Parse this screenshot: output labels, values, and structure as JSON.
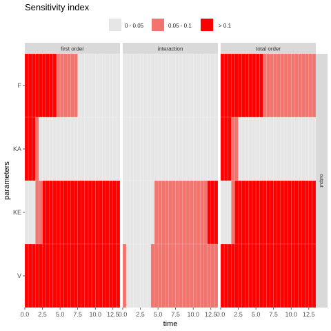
{
  "chart_data": {
    "type": "heatmap",
    "title": "Sensitivity index",
    "xlabel": "time",
    "ylabel": "parameters",
    "strip_right": "output",
    "panels": [
      "first order",
      "interaction",
      "total order"
    ],
    "parameters_top_to_bottom": [
      "F",
      "KA",
      "KE",
      "V"
    ],
    "x_range": [
      0,
      13.5
    ],
    "x_ticks": [
      0.0,
      2.5,
      5.0,
      7.5,
      10.0,
      12.5
    ],
    "x_tick_labels": [
      "0.0",
      "2.5",
      "5.0",
      "7.5",
      "10.0",
      "12.5"
    ],
    "time_bins": [
      0.5,
      1.0,
      1.5,
      2.0,
      2.5,
      3.0,
      3.5,
      4.0,
      4.5,
      5.0,
      5.5,
      6.0,
      6.5,
      7.0,
      7.5,
      8.0,
      8.5,
      9.0,
      9.5,
      10.0,
      10.5,
      11.0,
      11.5,
      12.0,
      12.5,
      13.0,
      13.5
    ],
    "legend": [
      {
        "label": "0 - 0.05",
        "color": "#E6E6E6"
      },
      {
        "label": "0.05 - 0.1",
        "color": "#F1756E"
      },
      {
        "label": "> 0.1",
        "color": "#FF0000"
      }
    ],
    "category_by_panel": {
      "first order": {
        "F": [
          2,
          2,
          2,
          2,
          2,
          2,
          2,
          2,
          2,
          1,
          1,
          1,
          1,
          1,
          1,
          0,
          0,
          0,
          0,
          0,
          0,
          0,
          0,
          0,
          0,
          0,
          0
        ],
        "KA": [
          2,
          2,
          2,
          1,
          0,
          0,
          0,
          0,
          0,
          0,
          0,
          0,
          0,
          0,
          0,
          0,
          0,
          0,
          0,
          0,
          0,
          0,
          0,
          0,
          0,
          0,
          0
        ],
        "KE": [
          0,
          0,
          0,
          1,
          1,
          2,
          2,
          2,
          2,
          2,
          2,
          2,
          2,
          2,
          2,
          2,
          2,
          2,
          2,
          2,
          2,
          2,
          2,
          2,
          2,
          2,
          2
        ],
        "V": [
          2,
          2,
          2,
          2,
          2,
          2,
          2,
          2,
          2,
          2,
          2,
          2,
          2,
          2,
          2,
          2,
          2,
          2,
          2,
          2,
          2,
          2,
          2,
          2,
          2,
          2,
          2
        ]
      },
      "interaction": {
        "F": [
          0,
          0,
          0,
          0,
          0,
          0,
          0,
          0,
          0,
          0,
          0,
          0,
          0,
          0,
          0,
          0,
          0,
          0,
          0,
          0,
          0,
          0,
          0,
          0,
          0,
          0,
          0
        ],
        "KA": [
          0,
          0,
          0,
          0,
          0,
          0,
          0,
          0,
          0,
          0,
          0,
          0,
          0,
          0,
          0,
          0,
          0,
          0,
          0,
          0,
          0,
          0,
          0,
          0,
          0,
          0,
          0
        ],
        "KE": [
          0,
          0,
          0,
          0,
          0,
          0,
          0,
          0,
          0,
          1,
          1,
          1,
          1,
          1,
          1,
          1,
          1,
          1,
          1,
          1,
          1,
          1,
          1,
          1,
          2,
          2,
          2
        ],
        "V": [
          1,
          0,
          0,
          0,
          0,
          0,
          0,
          0,
          1,
          1,
          1,
          1,
          1,
          1,
          1,
          1,
          1,
          1,
          1,
          1,
          1,
          1,
          1,
          1,
          1,
          1,
          1
        ]
      },
      "total order": {
        "F": [
          2,
          2,
          2,
          2,
          2,
          2,
          2,
          2,
          2,
          2,
          2,
          2,
          1,
          1,
          1,
          1,
          1,
          1,
          1,
          1,
          1,
          1,
          1,
          1,
          1,
          1,
          1
        ],
        "KA": [
          2,
          2,
          2,
          1,
          1,
          0,
          0,
          0,
          0,
          0,
          0,
          0,
          0,
          0,
          0,
          0,
          0,
          0,
          0,
          0,
          0,
          0,
          0,
          0,
          0,
          0,
          0
        ],
        "KE": [
          0,
          0,
          0,
          1,
          2,
          2,
          2,
          2,
          2,
          2,
          2,
          2,
          2,
          2,
          2,
          2,
          2,
          2,
          2,
          2,
          2,
          2,
          2,
          2,
          2,
          2,
          2
        ],
        "V": [
          2,
          2,
          2,
          2,
          2,
          2,
          2,
          2,
          2,
          2,
          2,
          2,
          2,
          2,
          2,
          2,
          2,
          2,
          2,
          2,
          2,
          2,
          2,
          2,
          2,
          2,
          2
        ]
      }
    }
  }
}
